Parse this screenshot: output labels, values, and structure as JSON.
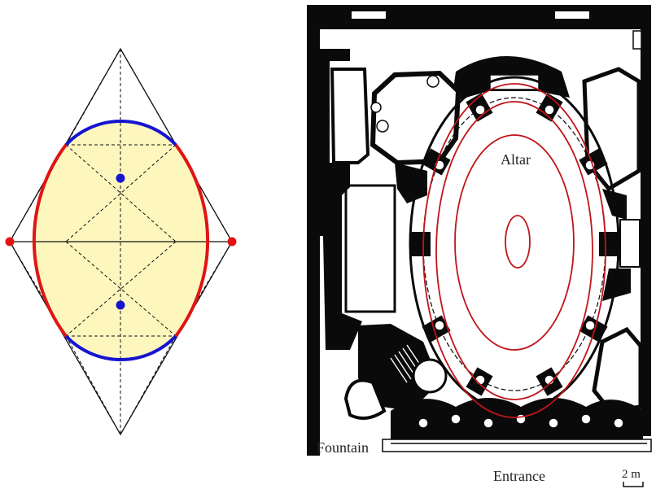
{
  "labels": {
    "altar": "Altar",
    "fountain": "Fountain",
    "entrance": "Entrance",
    "scale": "2 m"
  },
  "colors": {
    "ellipse_fill": "#fdf7be",
    "arc_blue": "#1515d0",
    "arc_red": "#e11414",
    "oval_red": "#c0151a",
    "wall": "#0a0a0a"
  }
}
